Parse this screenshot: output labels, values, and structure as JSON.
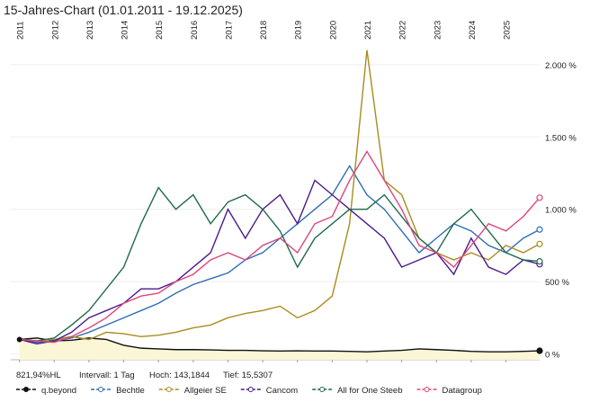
{
  "chart_data": {
    "type": "line",
    "title": "15-Jahres-Chart (01.01.2011 - 19.12.2025)",
    "x": [
      2011,
      2011.5,
      2012,
      2012.5,
      2013,
      2013.5,
      2014,
      2014.5,
      2015,
      2015.5,
      2016,
      2016.5,
      2017,
      2017.5,
      2018,
      2018.5,
      2019,
      2019.5,
      2020,
      2020.5,
      2021,
      2021.5,
      2022,
      2022.5,
      2023,
      2023.5,
      2024,
      2024.5,
      2025,
      2025.5,
      2025.97
    ],
    "xlim": [
      2010.75,
      2025.97
    ],
    "xticks": [
      2011,
      2012,
      2013,
      2014,
      2015,
      2016,
      2017,
      2018,
      2019,
      2020,
      2021,
      2022,
      2023,
      2024,
      2025
    ],
    "ylim": [
      -40,
      2260
    ],
    "yticks": [
      {
        "value": 0,
        "label": "0 %"
      },
      {
        "value": 500,
        "label": "500 %"
      },
      {
        "value": 1000,
        "label": "1.000 %"
      },
      {
        "value": 1500,
        "label": "1.500 %"
      },
      {
        "value": 2000,
        "label": "2.000 %"
      }
    ],
    "series": [
      {
        "name": "q.beyond",
        "color": "#111111",
        "fill": "#fbf6d6",
        "values": [
          100,
          110,
          90,
          95,
          110,
          100,
          60,
          40,
          35,
          30,
          30,
          28,
          25,
          25,
          22,
          20,
          22,
          20,
          20,
          18,
          15,
          20,
          25,
          35,
          30,
          25,
          18,
          15,
          15,
          18,
          22
        ]
      },
      {
        "name": "Bechtle",
        "color": "#2f6db5",
        "values": [
          100,
          80,
          90,
          110,
          150,
          200,
          250,
          300,
          350,
          420,
          480,
          520,
          560,
          650,
          700,
          800,
          900,
          1000,
          1100,
          1300,
          1100,
          1000,
          850,
          700,
          800,
          900,
          850,
          750,
          700,
          800,
          860
        ]
      },
      {
        "name": "Allgeier SE",
        "color": "#a88c1e",
        "values": [
          100,
          90,
          100,
          120,
          100,
          150,
          140,
          120,
          130,
          150,
          180,
          200,
          250,
          280,
          300,
          330,
          250,
          300,
          400,
          900,
          2100,
          1200,
          1100,
          800,
          700,
          650,
          700,
          650,
          750,
          700,
          760
        ]
      },
      {
        "name": "Cancom",
        "color": "#4b1a8c",
        "values": [
          100,
          70,
          90,
          150,
          250,
          300,
          350,
          450,
          450,
          500,
          600,
          700,
          1000,
          800,
          1000,
          1100,
          900,
          1200,
          1100,
          1000,
          900,
          800,
          600,
          650,
          700,
          550,
          800,
          600,
          550,
          650,
          620
        ]
      },
      {
        "name": "All for One Steeb",
        "color": "#1e6b4a",
        "values": [
          100,
          90,
          110,
          200,
          300,
          450,
          600,
          900,
          1150,
          1000,
          1100,
          900,
          1050,
          1100,
          1000,
          850,
          600,
          800,
          900,
          1000,
          1000,
          1100,
          950,
          800,
          700,
          900,
          1000,
          850,
          700,
          650,
          640
        ]
      },
      {
        "name": "Datagroup",
        "color": "#e0457b",
        "values": [
          100,
          90,
          80,
          120,
          180,
          250,
          350,
          400,
          420,
          500,
          550,
          650,
          700,
          650,
          750,
          800,
          700,
          900,
          950,
          1200,
          1400,
          1200,
          1000,
          750,
          700,
          600,
          750,
          900,
          850,
          950,
          1080
        ]
      }
    ],
    "stats": [
      "821,94%HL",
      "Intervall: 1 Tag",
      "Hoch: 143,1844",
      "Tief: 15,5307"
    ],
    "grid": true
  }
}
